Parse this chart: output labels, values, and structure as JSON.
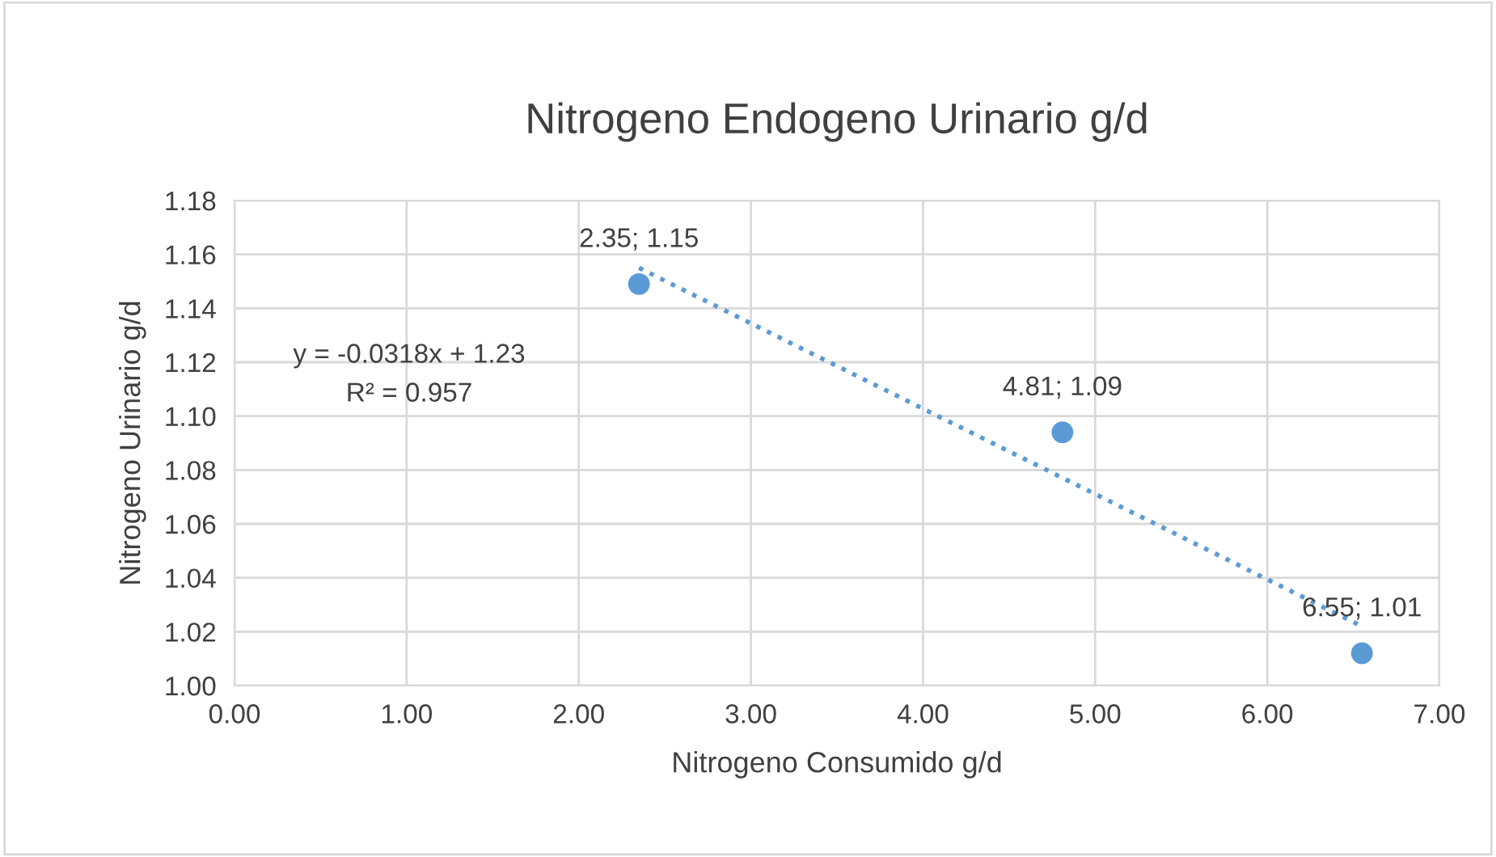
{
  "chart_data": {
    "type": "scatter",
    "title": "Nitrogeno Endogeno Urinario g/d",
    "xlabel": "Nitrogeno Consumido g/d",
    "ylabel": "Nitrogeno Urinario g/d",
    "series": [
      {
        "color": "#5b9bd5",
        "marker": "circle",
        "x": [
          2.35,
          4.81,
          6.55
        ],
        "values": [
          1.149,
          1.094,
          1.012
        ],
        "value_labels": [
          "2.35; 1.15",
          "4.81; 1.09",
          "6.55; 1.01"
        ]
      },
      {
        "type": "line",
        "color": "#5b9bd5",
        "line_style": "dotted",
        "marker": "none",
        "x": [
          2.35,
          6.55
        ],
        "values": [
          1.155,
          1.022
        ]
      }
    ],
    "annotations": [
      "y = -0.0318x + 1.23",
      "R² = 0.957"
    ],
    "xlim": [
      0,
      7
    ],
    "xticks": [
      {
        "value": 0,
        "label": "0.00"
      },
      {
        "value": 1,
        "label": "1.00"
      },
      {
        "value": 2,
        "label": "2.00"
      },
      {
        "value": 3,
        "label": "3.00"
      },
      {
        "value": 4,
        "label": "4.00"
      },
      {
        "value": 5,
        "label": "5.00"
      },
      {
        "value": 6,
        "label": "6.00"
      },
      {
        "value": 7,
        "label": "7.00"
      }
    ],
    "ylim": [
      1.0,
      1.18
    ],
    "yticks": [
      {
        "value": 1.0,
        "label": "1.00"
      },
      {
        "value": 1.02,
        "label": "1.02"
      },
      {
        "value": 1.04,
        "label": "1.04"
      },
      {
        "value": 1.06,
        "label": "1.06"
      },
      {
        "value": 1.08,
        "label": "1.08"
      },
      {
        "value": 1.1,
        "label": "1.10"
      },
      {
        "value": 1.12,
        "label": "1.12"
      },
      {
        "value": 1.14,
        "label": "1.14"
      },
      {
        "value": 1.16,
        "label": "1.16"
      },
      {
        "value": 1.18,
        "label": "1.18"
      }
    ],
    "grid": true,
    "legend": false
  }
}
